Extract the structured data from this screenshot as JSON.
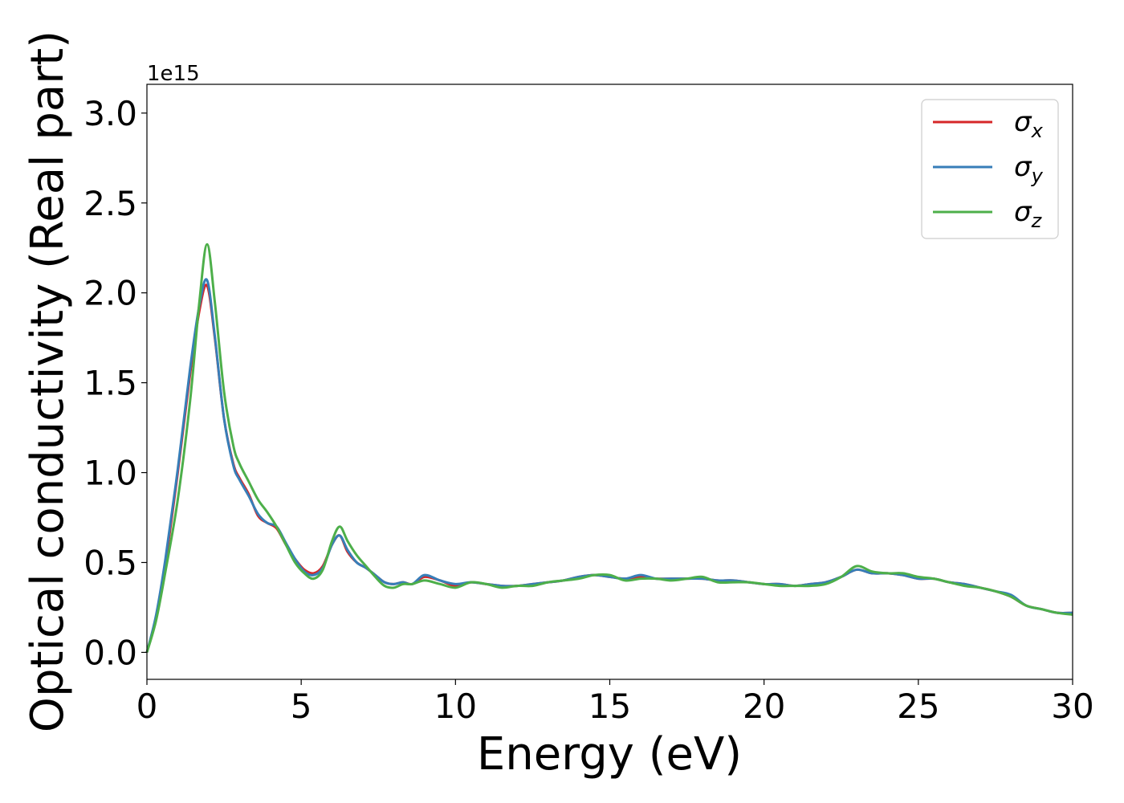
{
  "chart_data": {
    "type": "line",
    "title": "",
    "xlabel": "Energy (eV)",
    "ylabel": "Optical conductivity (Real part)",
    "y_offset_label": "1e15",
    "xlim": [
      0,
      30
    ],
    "ylim": [
      -0.15,
      3.16
    ],
    "xticks": [
      0,
      5,
      10,
      15,
      20,
      25,
      30
    ],
    "xtick_labels": [
      "0",
      "5",
      "10",
      "15",
      "20",
      "25",
      "30"
    ],
    "yticks": [
      0.0,
      0.5,
      1.0,
      1.5,
      2.0,
      2.5,
      3.0
    ],
    "ytick_labels": [
      "0.0",
      "0.5",
      "1.0",
      "1.5",
      "2.0",
      "2.5",
      "3.0"
    ],
    "grid": false,
    "legend_position": "top-right",
    "series": [
      {
        "name": "σ",
        "subscript": "x",
        "color": "#d62728",
        "x": [
          0,
          0.3,
          0.6,
          1.0,
          1.4,
          1.7,
          1.95,
          2.2,
          2.5,
          2.8,
          3.0,
          3.3,
          3.6,
          3.9,
          4.2,
          4.5,
          4.8,
          5.1,
          5.4,
          5.7,
          6.0,
          6.25,
          6.5,
          6.8,
          7.1,
          7.4,
          7.7,
          8.0,
          8.3,
          8.6,
          9.0,
          9.5,
          10.0,
          10.5,
          11.0,
          11.5,
          12.0,
          12.5,
          13.0,
          13.5,
          14.0,
          14.5,
          15.0,
          15.5,
          16.0,
          16.5,
          17.0,
          17.5,
          18.0,
          18.5,
          19.0,
          19.5,
          20.0,
          20.5,
          21.0,
          21.5,
          22.0,
          22.5,
          23.0,
          23.5,
          24.0,
          24.5,
          25.0,
          25.5,
          26.0,
          26.5,
          27.0,
          27.5,
          28.0,
          28.5,
          29.0,
          29.5,
          30.0
        ],
        "y": [
          0.0,
          0.2,
          0.5,
          1.0,
          1.55,
          1.9,
          2.04,
          1.75,
          1.3,
          1.05,
          0.97,
          0.88,
          0.76,
          0.72,
          0.69,
          0.6,
          0.52,
          0.46,
          0.44,
          0.48,
          0.6,
          0.65,
          0.56,
          0.5,
          0.47,
          0.43,
          0.39,
          0.38,
          0.39,
          0.38,
          0.42,
          0.4,
          0.37,
          0.39,
          0.38,
          0.37,
          0.37,
          0.38,
          0.39,
          0.4,
          0.42,
          0.43,
          0.42,
          0.41,
          0.42,
          0.41,
          0.41,
          0.41,
          0.41,
          0.4,
          0.4,
          0.39,
          0.38,
          0.38,
          0.37,
          0.38,
          0.39,
          0.42,
          0.46,
          0.44,
          0.44,
          0.43,
          0.41,
          0.41,
          0.39,
          0.38,
          0.36,
          0.34,
          0.31,
          0.26,
          0.24,
          0.22,
          0.22
        ]
      },
      {
        "name": "σ",
        "subscript": "y",
        "color": "#377eb8",
        "x": [
          0,
          0.3,
          0.6,
          1.0,
          1.4,
          1.7,
          1.95,
          2.2,
          2.5,
          2.8,
          3.0,
          3.3,
          3.6,
          3.9,
          4.2,
          4.5,
          4.8,
          5.1,
          5.4,
          5.7,
          6.0,
          6.25,
          6.5,
          6.8,
          7.1,
          7.4,
          7.7,
          8.0,
          8.3,
          8.6,
          9.0,
          9.5,
          10.0,
          10.5,
          11.0,
          11.5,
          12.0,
          12.5,
          13.0,
          13.5,
          14.0,
          14.5,
          15.0,
          15.5,
          16.0,
          16.5,
          17.0,
          17.5,
          18.0,
          18.5,
          19.0,
          19.5,
          20.0,
          20.5,
          21.0,
          21.5,
          22.0,
          22.5,
          23.0,
          23.5,
          24.0,
          24.5,
          25.0,
          25.5,
          26.0,
          26.5,
          27.0,
          27.5,
          28.0,
          28.5,
          29.0,
          29.5,
          30.0
        ],
        "y": [
          0.0,
          0.21,
          0.52,
          1.02,
          1.58,
          1.93,
          2.07,
          1.76,
          1.3,
          1.04,
          0.96,
          0.87,
          0.77,
          0.72,
          0.7,
          0.61,
          0.52,
          0.45,
          0.43,
          0.47,
          0.6,
          0.65,
          0.57,
          0.5,
          0.47,
          0.43,
          0.39,
          0.38,
          0.39,
          0.38,
          0.43,
          0.4,
          0.38,
          0.39,
          0.38,
          0.37,
          0.37,
          0.38,
          0.39,
          0.4,
          0.42,
          0.43,
          0.42,
          0.41,
          0.43,
          0.41,
          0.41,
          0.41,
          0.41,
          0.4,
          0.4,
          0.39,
          0.38,
          0.38,
          0.37,
          0.38,
          0.39,
          0.42,
          0.46,
          0.44,
          0.44,
          0.43,
          0.41,
          0.41,
          0.39,
          0.38,
          0.36,
          0.34,
          0.32,
          0.26,
          0.24,
          0.22,
          0.22
        ]
      },
      {
        "name": "σ",
        "subscript": "z",
        "color": "#4daf4a",
        "x": [
          0,
          0.3,
          0.6,
          1.0,
          1.4,
          1.7,
          1.95,
          2.2,
          2.5,
          2.8,
          3.0,
          3.3,
          3.6,
          3.9,
          4.2,
          4.5,
          4.8,
          5.1,
          5.4,
          5.7,
          6.0,
          6.25,
          6.5,
          6.8,
          7.1,
          7.4,
          7.7,
          8.0,
          8.3,
          8.6,
          9.0,
          9.5,
          10.0,
          10.5,
          11.0,
          11.5,
          12.0,
          12.5,
          13.0,
          13.5,
          14.0,
          14.5,
          15.0,
          15.5,
          16.0,
          16.5,
          17.0,
          17.5,
          18.0,
          18.5,
          19.0,
          19.5,
          20.0,
          20.5,
          21.0,
          21.5,
          22.0,
          22.5,
          23.0,
          23.5,
          24.0,
          24.5,
          25.0,
          25.5,
          26.0,
          26.5,
          27.0,
          27.5,
          28.0,
          28.5,
          29.0,
          29.5,
          30.0
        ],
        "y": [
          0.0,
          0.18,
          0.45,
          0.85,
          1.4,
          1.95,
          2.27,
          1.95,
          1.45,
          1.15,
          1.05,
          0.95,
          0.85,
          0.78,
          0.7,
          0.6,
          0.5,
          0.44,
          0.41,
          0.46,
          0.62,
          0.7,
          0.62,
          0.54,
          0.48,
          0.42,
          0.37,
          0.36,
          0.38,
          0.38,
          0.4,
          0.38,
          0.36,
          0.39,
          0.38,
          0.36,
          0.37,
          0.37,
          0.39,
          0.4,
          0.41,
          0.43,
          0.43,
          0.4,
          0.41,
          0.41,
          0.4,
          0.41,
          0.42,
          0.39,
          0.39,
          0.39,
          0.38,
          0.37,
          0.37,
          0.37,
          0.38,
          0.42,
          0.48,
          0.45,
          0.44,
          0.44,
          0.42,
          0.41,
          0.39,
          0.37,
          0.36,
          0.34,
          0.31,
          0.26,
          0.24,
          0.22,
          0.21
        ]
      }
    ]
  }
}
